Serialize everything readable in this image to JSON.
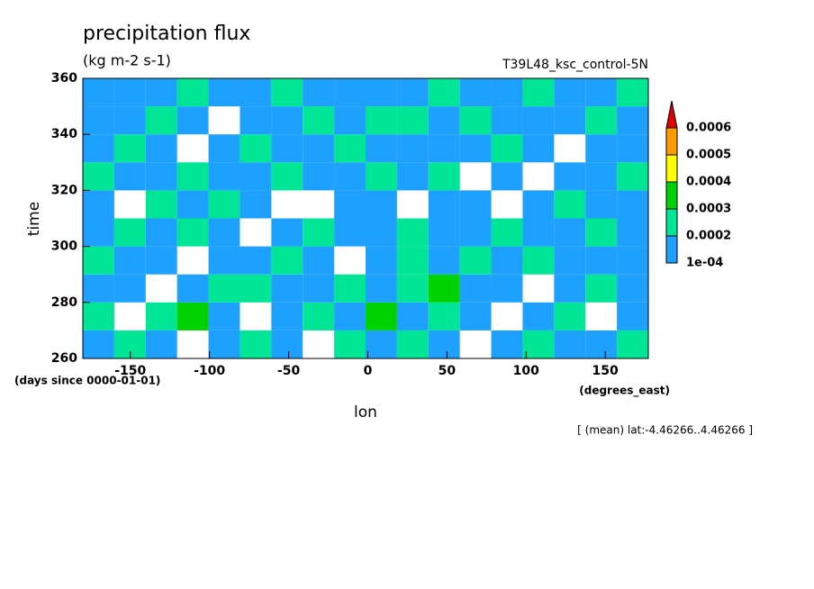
{
  "chart_data": {
    "type": "heatmap",
    "title": "precipitation flux",
    "subtitle": "(kg m-2 s-1)",
    "dataset": "T39L48_ksc_control-5N",
    "y_label": "time",
    "y_units": "(days since 0000-01-01)",
    "x_label": "lon",
    "x_units": "(degrees_east)",
    "annotation": "[ (mean) lat:-4.46266..4.46266 ]",
    "xlim": [
      -180,
      177.2
    ],
    "xticks": [
      -150,
      -100,
      -50,
      0,
      50,
      100,
      150
    ],
    "ylim": [
      260,
      360
    ],
    "yticks": [
      260,
      280,
      300,
      320,
      340,
      360
    ],
    "levels": [
      {
        "value": 0.0001,
        "label": "1e-04"
      },
      0.0002,
      0.0003,
      0.0004,
      0.0005,
      0.0006
    ],
    "colors": [
      "#1ea0ff",
      "#00e696",
      "#00d200",
      "#ffff00",
      "#ff9b00",
      "#e10000"
    ],
    "z": [
      [
        0.00015,
        0.00022,
        0.00012,
        8e-05,
        0.00018,
        0.00025,
        0.00014,
        9e-05,
        0.00021,
        0.00016,
        0.00028,
        0.00013,
        7e-05,
        0.00019,
        0.00024,
        0.00011,
        0.00017,
        0.00022
      ],
      [
        0.00021,
        9e-05,
        0.00026,
        0.00032,
        0.00014,
        8e-05,
        0.00019,
        0.00023,
        0.00012,
        0.00031,
        0.00018,
        0.00024,
        0.00015,
        6e-05,
        0.00013,
        0.00027,
        9e-05,
        0.00016
      ],
      [
        0.00012,
        0.00018,
        8e-05,
        0.00016,
        0.00029,
        0.00021,
        0.00011,
        0.00017,
        0.00026,
        0.00014,
        0.00022,
        0.00035,
        0.00019,
        0.00012,
        8e-05,
        0.00018,
        0.00023,
        0.00011
      ],
      [
        0.00024,
        0.00013,
        0.00019,
        7e-05,
        0.00012,
        0.00017,
        0.00027,
        0.00013,
        9e-05,
        0.00018,
        0.00028,
        0.00016,
        0.00024,
        0.00017,
        0.00021,
        0.00012,
        0.00015,
        0.00019
      ],
      [
        0.00019,
        0.00026,
        0.00014,
        0.00022,
        0.00016,
        9e-05,
        0.00015,
        0.00021,
        0.00018,
        0.00012,
        0.00023,
        0.00019,
        0.00011,
        0.00026,
        0.00014,
        0.00019,
        0.00028,
        0.00013
      ],
      [
        0.00014,
        8e-05,
        0.00021,
        0.00018,
        0.00023,
        0.00015,
        6e-05,
        9e-05,
        0.00014,
        0.00019,
        7e-05,
        0.00012,
        0.00018,
        9e-05,
        0.00016,
        0.00022,
        0.00013,
        0.00018
      ],
      [
        0.00022,
        0.00017,
        0.00011,
        0.00024,
        0.00013,
        0.00019,
        0.00025,
        0.00016,
        0.00011,
        0.00024,
        0.00016,
        0.00021,
        8e-05,
        0.00014,
        9e-05,
        0.00017,
        0.00011,
        0.00024
      ],
      [
        0.00016,
        0.00021,
        0.00018,
        9e-05,
        0.00017,
        0.00022,
        0.00014,
        0.00012,
        0.00023,
        0.00017,
        0.00012,
        0.00019,
        0.00015,
        0.00021,
        0.00018,
        7e-05,
        0.00016,
        0.00019
      ],
      [
        0.00011,
        0.00015,
        0.00023,
        0.00016,
        8e-05,
        0.00014,
        0.00018,
        0.00022,
        0.00015,
        0.00027,
        0.00024,
        0.00013,
        0.00022,
        0.00016,
        0.00012,
        0.00019,
        0.00023,
        0.00012
      ],
      [
        0.00018,
        0.00012,
        0.00016,
        0.00021,
        0.00019,
        0.00011,
        0.00023,
        0.00017,
        0.00013,
        0.00019,
        0.00015,
        0.00021,
        0.00014,
        0.00019,
        0.00024,
        0.00015,
        0.00018,
        0.00021
      ]
    ]
  }
}
